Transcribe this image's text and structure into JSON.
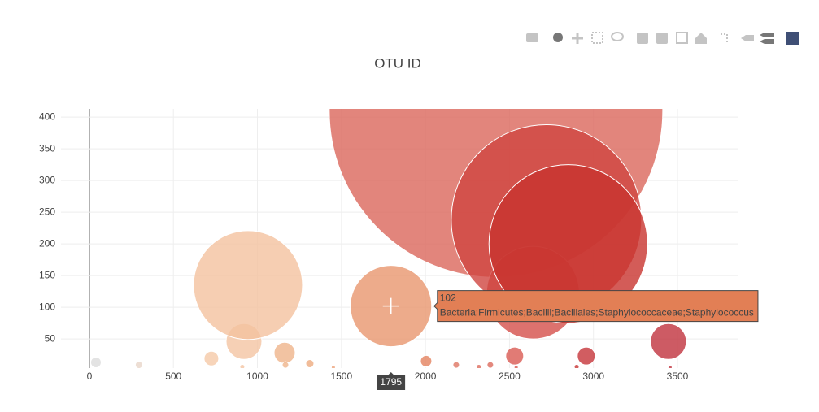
{
  "chart_data": {
    "type": "bubble",
    "title": "OTU ID",
    "x": [
      39,
      295,
      726,
      910,
      920,
      944,
      1162,
      1167,
      1312,
      1452,
      1795,
      2004,
      2183,
      2318,
      2386,
      2420,
      2531,
      2540,
      2640,
      2720,
      2850,
      2900,
      2957,
      3446,
      3456
    ],
    "values": [
      13,
      9,
      19,
      6,
      46,
      135,
      28,
      9,
      11,
      5,
      102,
      15,
      9,
      6,
      9,
      410,
      23,
      5,
      123,
      238,
      200,
      6,
      23,
      46,
      5
    ],
    "sizes": [
      13,
      9,
      18,
      6,
      44,
      134,
      26,
      8,
      10,
      5,
      100,
      14,
      8,
      6,
      8,
      410,
      22,
      5,
      114,
      234,
      195,
      6,
      22,
      44,
      5
    ],
    "colors": [
      "#dcdcdc",
      "#e8d6c9",
      "#f5c9a8",
      "#f4c4a2",
      "#f4c4a2",
      "#f4c29f",
      "#efb48b",
      "#efb48b",
      "#eeab80",
      "#eca37a",
      "#e8966e",
      "#e3825f",
      "#df7563",
      "#dd6d5e",
      "#dc6a5d",
      "#db665b",
      "#d95a52",
      "#d85950",
      "#d54f4a",
      "#d04540",
      "#c8332e",
      "#c83535",
      "#c6353a",
      "#c0323d",
      "#c0323d"
    ],
    "opacity": 0.8,
    "xlim": [
      -169,
      3863
    ],
    "ylim": [
      4,
      413
    ],
    "xticks": [
      0,
      500,
      1000,
      1500,
      2000,
      2500,
      3000,
      3500
    ],
    "yticks": [
      50,
      100,
      150,
      200,
      250,
      300,
      350,
      400
    ],
    "grid": true,
    "hover": {
      "x": 1795,
      "y": 102,
      "text": "Bacteria;Firmicutes;Bacilli;Bacillales;Staphylococcaceae;Staphylococcus",
      "color": "#e27f55"
    }
  }
}
